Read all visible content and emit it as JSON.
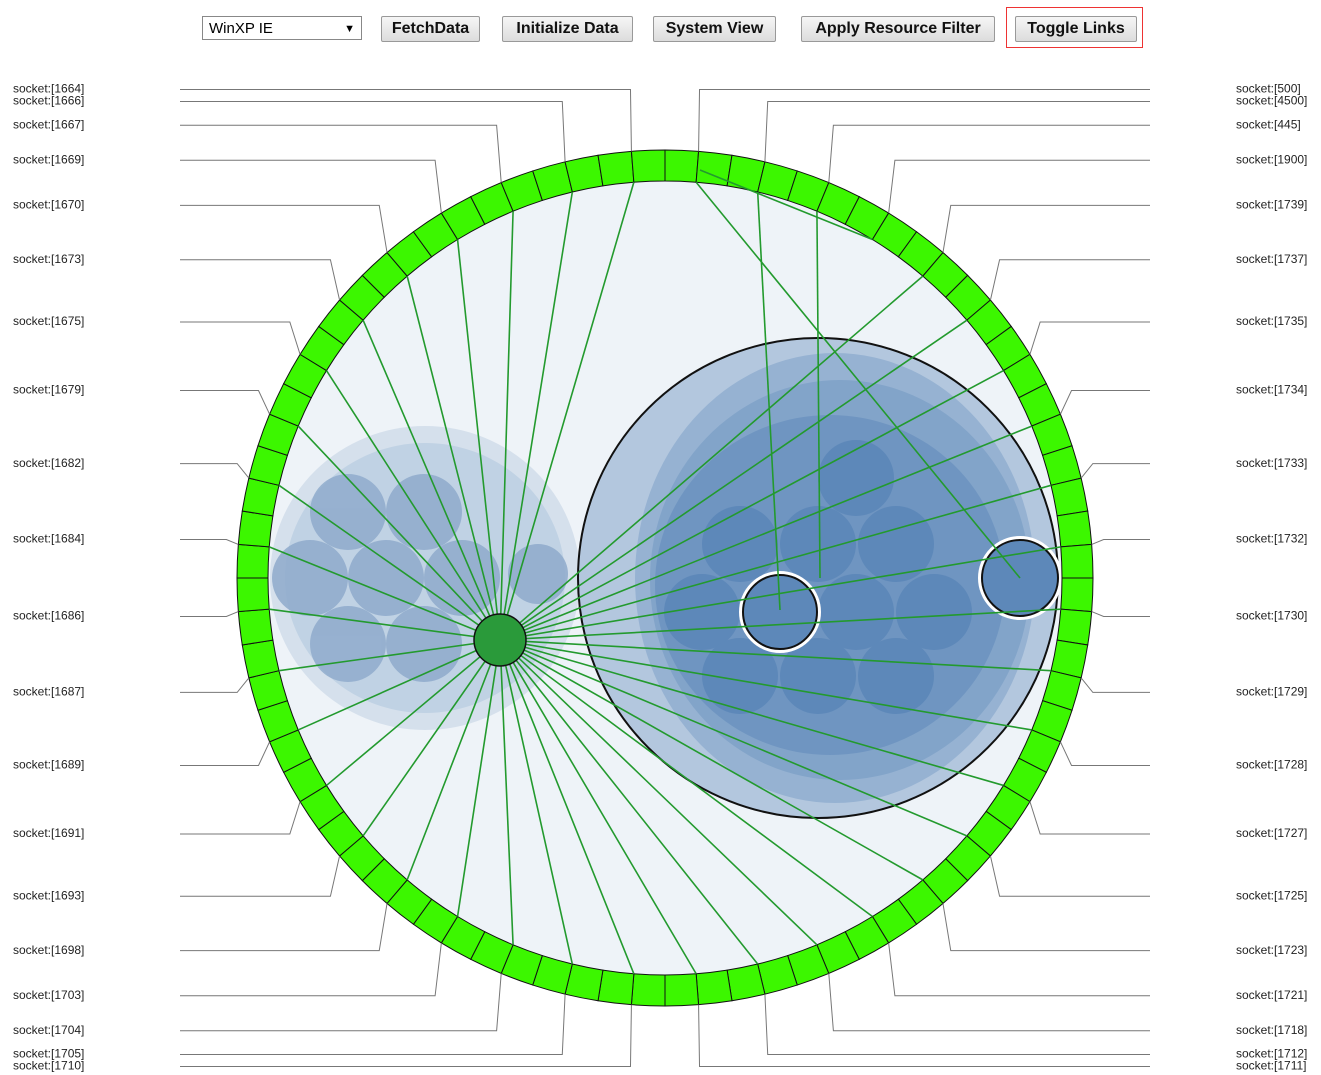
{
  "toolbar": {
    "select": "WinXP IE",
    "buttons": [
      "FetchData",
      "Initialize Data",
      "System View",
      "Apply Resource Filter",
      "Toggle Links"
    ]
  },
  "sockets": {
    "left": [
      "socket:[1664]",
      "socket:[1666]",
      "socket:[1667]",
      "socket:[1669]",
      "socket:[1670]",
      "socket:[1673]",
      "socket:[1675]",
      "socket:[1679]",
      "socket:[1682]",
      "socket:[1684]",
      "socket:[1686]",
      "socket:[1687]",
      "socket:[1689]",
      "socket:[1691]",
      "socket:[1693]",
      "socket:[1698]",
      "socket:[1703]",
      "socket:[1704]",
      "socket:[1705]",
      "socket:[1710]"
    ],
    "right": [
      "socket:[500]",
      "socket:[4500]",
      "socket:[445]",
      "socket:[1900]",
      "socket:[1739]",
      "socket:[1737]",
      "socket:[1735]",
      "socket:[1734]",
      "socket:[1733]",
      "socket:[1732]",
      "socket:[1730]",
      "socket:[1729]",
      "socket:[1728]",
      "socket:[1727]",
      "socket:[1725]",
      "socket:[1723]",
      "socket:[1721]",
      "socket:[1718]",
      "socket:[1712]",
      "socket:[1711]"
    ]
  }
}
